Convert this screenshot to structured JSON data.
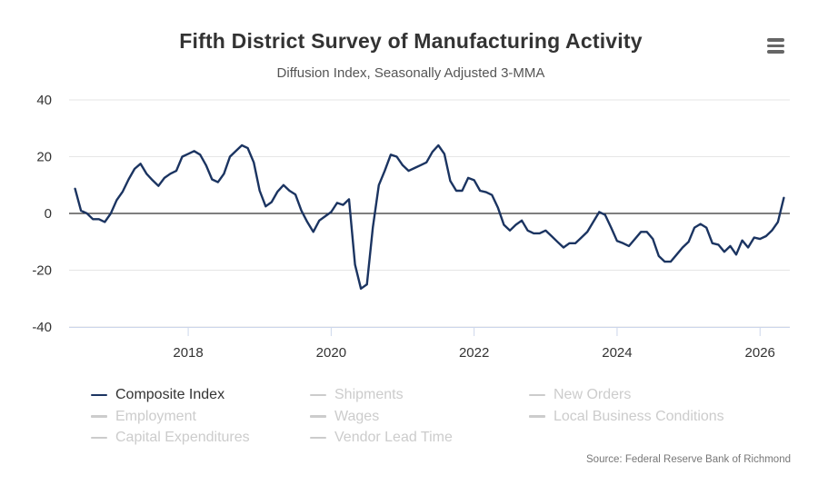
{
  "header": {
    "title": "Fifth District Survey of Manufacturing Activity",
    "subtitle": "Diffusion Index, Seasonally Adjusted 3-MMA",
    "menu_icon": "hamburger-menu-icon"
  },
  "colors": {
    "series": "#1b3461",
    "inactive": "#cccccc",
    "zero_line": "#333333",
    "grid": "#e6e6e6",
    "axis_text": "#333333"
  },
  "legend": {
    "items": [
      {
        "label": "Composite Index",
        "active": true
      },
      {
        "label": "Shipments",
        "active": false
      },
      {
        "label": "New Orders",
        "active": false
      },
      {
        "label": "Employment",
        "active": false
      },
      {
        "label": "Wages",
        "active": false
      },
      {
        "label": "Local Business Conditions",
        "active": false
      },
      {
        "label": "Capital Expenditures",
        "active": false
      },
      {
        "label": "Vendor Lead Time",
        "active": false
      }
    ]
  },
  "source": "Source: Federal Reserve Bank of Richmond",
  "chart_data": {
    "type": "line",
    "title": "Fifth District Survey of Manufacturing Activity",
    "subtitle": "Diffusion Index, Seasonally Adjusted 3-MMA",
    "xlabel": "",
    "ylabel": "",
    "ylim": [
      -40,
      40
    ],
    "yticks": [
      -40,
      -20,
      0,
      20,
      40
    ],
    "xlim": [
      "2016-05",
      "2026-06"
    ],
    "xticks": [
      "2018",
      "2020",
      "2022",
      "2024",
      "2026"
    ],
    "grid": true,
    "legend_position": "bottom",
    "series": [
      {
        "name": "Composite Index",
        "values": [
          [
            "2016-06",
            8.7
          ],
          [
            "2016-07",
            1.0
          ],
          [
            "2016-08",
            0.0
          ],
          [
            "2016-09",
            -2.0
          ],
          [
            "2016-10",
            -2.0
          ],
          [
            "2016-11",
            -3.0
          ],
          [
            "2016-12",
            0.0
          ],
          [
            "2017-01",
            4.7
          ],
          [
            "2017-02",
            7.7
          ],
          [
            "2017-03",
            12.0
          ],
          [
            "2017-04",
            15.7
          ],
          [
            "2017-05",
            17.5
          ],
          [
            "2017-06",
            14.0
          ],
          [
            "2017-07",
            11.7
          ],
          [
            "2017-08",
            9.7
          ],
          [
            "2017-09",
            12.5
          ],
          [
            "2017-10",
            14.0
          ],
          [
            "2017-11",
            15.0
          ],
          [
            "2017-12",
            20.0
          ],
          [
            "2018-01",
            21.0
          ],
          [
            "2018-02",
            22.0
          ],
          [
            "2018-03",
            20.7
          ],
          [
            "2018-04",
            17.0
          ],
          [
            "2018-05",
            12.0
          ],
          [
            "2018-06",
            11.0
          ],
          [
            "2018-07",
            14.0
          ],
          [
            "2018-08",
            20.0
          ],
          [
            "2018-09",
            22.0
          ],
          [
            "2018-10",
            24.0
          ],
          [
            "2018-11",
            23.0
          ],
          [
            "2018-12",
            18.0
          ],
          [
            "2019-01",
            8.0
          ],
          [
            "2019-02",
            2.5
          ],
          [
            "2019-03",
            4.0
          ],
          [
            "2019-04",
            7.7
          ],
          [
            "2019-05",
            10.0
          ],
          [
            "2019-06",
            8.0
          ],
          [
            "2019-07",
            6.7
          ],
          [
            "2019-08",
            1.0
          ],
          [
            "2019-09",
            -3.0
          ],
          [
            "2019-10",
            -6.5
          ],
          [
            "2019-11",
            -2.5
          ],
          [
            "2019-12",
            -1.0
          ],
          [
            "2020-01",
            0.5
          ],
          [
            "2020-02",
            3.7
          ],
          [
            "2020-03",
            3.0
          ],
          [
            "2020-04",
            5.0
          ],
          [
            "2020-05",
            -18.0
          ],
          [
            "2020-06",
            -26.5
          ],
          [
            "2020-07",
            -25.0
          ],
          [
            "2020-08",
            -5.0
          ],
          [
            "2020-09",
            10.0
          ],
          [
            "2020-10",
            15.0
          ],
          [
            "2020-11",
            20.7
          ],
          [
            "2020-12",
            20.0
          ],
          [
            "2021-01",
            17.0
          ],
          [
            "2021-02",
            15.0
          ],
          [
            "2021-03",
            16.0
          ],
          [
            "2021-04",
            17.0
          ],
          [
            "2021-05",
            18.0
          ],
          [
            "2021-06",
            21.7
          ],
          [
            "2021-07",
            24.0
          ],
          [
            "2021-08",
            21.0
          ],
          [
            "2021-09",
            11.5
          ],
          [
            "2021-10",
            8.0
          ],
          [
            "2021-11",
            8.0
          ],
          [
            "2021-12",
            12.5
          ],
          [
            "2022-01",
            11.7
          ],
          [
            "2022-02",
            8.0
          ],
          [
            "2022-03",
            7.5
          ],
          [
            "2022-04",
            6.5
          ],
          [
            "2022-05",
            2.0
          ],
          [
            "2022-06",
            -4.0
          ],
          [
            "2022-07",
            -6.0
          ],
          [
            "2022-08",
            -4.0
          ],
          [
            "2022-09",
            -2.5
          ],
          [
            "2022-10",
            -6.0
          ],
          [
            "2022-11",
            -7.0
          ],
          [
            "2022-12",
            -7.0
          ],
          [
            "2023-01",
            -6.0
          ],
          [
            "2023-02",
            -8.0
          ],
          [
            "2023-03",
            -10.0
          ],
          [
            "2023-04",
            -12.0
          ],
          [
            "2023-05",
            -10.5
          ],
          [
            "2023-06",
            -10.5
          ],
          [
            "2023-07",
            -8.5
          ],
          [
            "2023-08",
            -6.5
          ],
          [
            "2023-09",
            -3.0
          ],
          [
            "2023-10",
            0.5
          ],
          [
            "2023-11",
            -0.5
          ],
          [
            "2023-12",
            -5.0
          ],
          [
            "2024-01",
            -9.7
          ],
          [
            "2024-02",
            -10.5
          ],
          [
            "2024-03",
            -11.5
          ],
          [
            "2024-04",
            -9.0
          ],
          [
            "2024-05",
            -6.5
          ],
          [
            "2024-06",
            -6.5
          ],
          [
            "2024-07",
            -9.0
          ],
          [
            "2024-08",
            -15.0
          ],
          [
            "2024-09",
            -17.0
          ],
          [
            "2024-10",
            -17.0
          ],
          [
            "2024-11",
            -14.5
          ],
          [
            "2024-12",
            -12.0
          ],
          [
            "2025-01",
            -10.0
          ],
          [
            "2025-02",
            -5.0
          ],
          [
            "2025-03",
            -3.7
          ],
          [
            "2025-04",
            -5.0
          ],
          [
            "2025-05",
            -10.5
          ],
          [
            "2025-06",
            -11.0
          ],
          [
            "2025-07",
            -13.5
          ],
          [
            "2025-08",
            -11.5
          ],
          [
            "2025-09",
            -14.5
          ],
          [
            "2025-10",
            -9.5
          ],
          [
            "2025-11",
            -12.0
          ],
          [
            "2025-12",
            -8.5
          ],
          [
            "2026-01",
            -9.0
          ],
          [
            "2026-02",
            -8.0
          ],
          [
            "2026-03",
            -6.0
          ],
          [
            "2026-04",
            -3.0
          ],
          [
            "2026-05",
            5.5
          ]
        ]
      }
    ]
  }
}
